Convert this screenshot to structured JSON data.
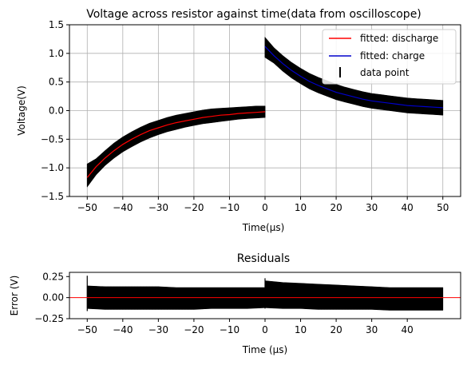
{
  "chart_data": [
    {
      "type": "line",
      "title": "Voltage across resistor against time(data from oscilloscope)",
      "xlabel": "Time(μs)",
      "ylabel": "Voltage(V)",
      "xlim": [
        -55,
        55
      ],
      "ylim": [
        -1.5,
        1.5
      ],
      "xticks": [
        -50,
        -40,
        -30,
        -20,
        -10,
        0,
        10,
        20,
        30,
        40,
        50
      ],
      "xtick_labels": [
        "−50",
        "−40",
        "−30",
        "−20",
        "−10",
        "0",
        "10",
        "20",
        "30",
        "40",
        "50"
      ],
      "yticks": [
        -1.5,
        -1.0,
        -0.5,
        0.0,
        0.5,
        1.0,
        1.5
      ],
      "ytick_labels": [
        "−1.5",
        "−1.0",
        "−0.5",
        "0.0",
        "0.5",
        "1.0",
        "1.5"
      ],
      "grid": true,
      "legend_position": "top-right",
      "series": [
        {
          "name": "fitted: discharge",
          "color": "#ff0000",
          "x": [
            -50,
            -47.5,
            -45,
            -42.5,
            -40,
            -37.5,
            -35,
            -32.5,
            -30,
            -27.5,
            -25,
            -22.5,
            -20,
            -17.5,
            -15,
            -12.5,
            -10,
            -7.5,
            -5,
            -2.5,
            0
          ],
          "y": [
            -1.17,
            -0.98,
            -0.83,
            -0.7,
            -0.59,
            -0.5,
            -0.42,
            -0.35,
            -0.3,
            -0.25,
            -0.21,
            -0.18,
            -0.15,
            -0.12,
            -0.1,
            -0.08,
            -0.07,
            -0.05,
            -0.04,
            -0.03,
            -0.02
          ]
        },
        {
          "name": "fitted: charge",
          "color": "#0000cc",
          "x": [
            0,
            2.5,
            5,
            7.5,
            10,
            12.5,
            15,
            17.5,
            20,
            22.5,
            25,
            27.5,
            30,
            32.5,
            35,
            37.5,
            40,
            42.5,
            45,
            47.5,
            50
          ],
          "y": [
            1.12,
            0.96,
            0.82,
            0.7,
            0.6,
            0.51,
            0.44,
            0.38,
            0.32,
            0.28,
            0.24,
            0.2,
            0.17,
            0.15,
            0.13,
            0.11,
            0.09,
            0.08,
            0.07,
            0.06,
            0.05
          ]
        },
        {
          "name": "data point",
          "color": "#000000",
          "style": "error-band",
          "segments": [
            {
              "x": [
                -50,
                -47.5,
                -45,
                -42.5,
                -40,
                -37.5,
                -35,
                -32.5,
                -30,
                -27.5,
                -25,
                -22.5,
                -20,
                -17.5,
                -15,
                -12.5,
                -10,
                -7.5,
                -5,
                -2.5,
                0
              ],
              "y_low": [
                -1.33,
                -1.12,
                -0.96,
                -0.83,
                -0.72,
                -0.63,
                -0.55,
                -0.48,
                -0.42,
                -0.37,
                -0.33,
                -0.29,
                -0.26,
                -0.23,
                -0.21,
                -0.19,
                -0.17,
                -0.15,
                -0.14,
                -0.13,
                -0.12
              ],
              "y_high": [
                -0.93,
                -0.84,
                -0.7,
                -0.57,
                -0.46,
                -0.37,
                -0.29,
                -0.22,
                -0.17,
                -0.12,
                -0.08,
                -0.05,
                -0.02,
                0.01,
                0.03,
                0.04,
                0.05,
                0.06,
                0.07,
                0.08,
                0.08
              ]
            },
            {
              "x": [
                0,
                2.5,
                5,
                7.5,
                10,
                12.5,
                15,
                17.5,
                20,
                22.5,
                25,
                27.5,
                30,
                32.5,
                35,
                37.5,
                40,
                42.5,
                45,
                47.5,
                50
              ],
              "y_low": [
                0.93,
                0.83,
                0.69,
                0.57,
                0.47,
                0.38,
                0.31,
                0.25,
                0.19,
                0.15,
                0.11,
                0.07,
                0.04,
                0.02,
                0.0,
                -0.02,
                -0.04,
                -0.05,
                -0.06,
                -0.07,
                -0.08
              ],
              "y_high": [
                1.28,
                1.1,
                0.96,
                0.84,
                0.74,
                0.65,
                0.58,
                0.52,
                0.46,
                0.41,
                0.37,
                0.33,
                0.3,
                0.28,
                0.26,
                0.24,
                0.22,
                0.21,
                0.2,
                0.19,
                0.18
              ]
            }
          ]
        }
      ]
    },
    {
      "type": "line",
      "title": "Residuals",
      "xlabel": "Time (μs)",
      "ylabel": "Error (V)",
      "xlim": [
        -55,
        55
      ],
      "ylim": [
        -0.25,
        0.3
      ],
      "xticks": [
        -50,
        -40,
        -30,
        -20,
        -10,
        0,
        10,
        20,
        30,
        40
      ],
      "xtick_labels": [
        "−50",
        "−40",
        "−30",
        "−20",
        "−10",
        "0",
        "10",
        "20",
        "30",
        "40"
      ],
      "yticks": [
        -0.25,
        0.0,
        0.25
      ],
      "ytick_labels": [
        "−0.25",
        "0.00",
        "0.25"
      ],
      "grid": false,
      "reference_line": {
        "y": 0.0,
        "color": "#ff0000"
      },
      "series": [
        {
          "name": "",
          "color": "#000000",
          "style": "error-band",
          "segments": [
            {
              "x": [
                -50,
                -45,
                -40,
                -35,
                -30,
                -25,
                -20,
                -15,
                -10,
                -5,
                0
              ],
              "y_low": [
                -0.13,
                -0.14,
                -0.14,
                -0.14,
                -0.14,
                -0.14,
                -0.14,
                -0.13,
                -0.13,
                -0.13,
                -0.12
              ],
              "y_high": [
                0.14,
                0.13,
                0.13,
                0.13,
                0.13,
                0.12,
                0.12,
                0.12,
                0.12,
                0.12,
                0.12
              ]
            },
            {
              "x": [
                0,
                5,
                10,
                15,
                20,
                25,
                30,
                35,
                40,
                45,
                50
              ],
              "y_low": [
                -0.12,
                -0.13,
                -0.13,
                -0.14,
                -0.14,
                -0.14,
                -0.14,
                -0.15,
                -0.15,
                -0.15,
                -0.15
              ],
              "y_high": [
                0.2,
                0.18,
                0.17,
                0.16,
                0.15,
                0.14,
                0.13,
                0.12,
                0.12,
                0.12,
                0.12
              ]
            }
          ],
          "spikes": [
            {
              "x": -50,
              "y_low": -0.16,
              "y_high": 0.26
            },
            {
              "x": 0,
              "y_low": -0.13,
              "y_high": 0.23
            }
          ]
        }
      ]
    }
  ]
}
